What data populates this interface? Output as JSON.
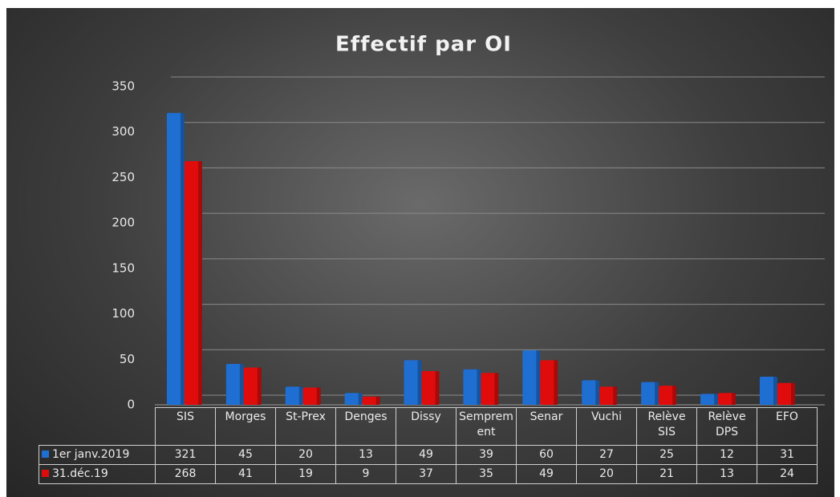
{
  "chart_data": {
    "type": "bar",
    "title": "Effectif par OI",
    "categories": [
      "SIS",
      "Morges",
      "St-Prex",
      "Denges",
      "Dissy",
      "Semprement",
      "Senar",
      "Vuchi",
      "Relève SIS",
      "Relève DPS",
      "EFO"
    ],
    "series": [
      {
        "name": "1er janv.2019",
        "color": "#1f6fd2",
        "values": [
          321,
          45,
          20,
          13,
          49,
          39,
          60,
          27,
          25,
          12,
          31
        ]
      },
      {
        "name": "31.déc.19",
        "color": "#e00c0c",
        "values": [
          268,
          41,
          19,
          9,
          37,
          35,
          49,
          20,
          21,
          13,
          24
        ]
      }
    ],
    "ylim": [
      0,
      350
    ],
    "yticks": [
      0,
      50,
      100,
      150,
      200,
      250,
      300,
      350
    ],
    "grid": true,
    "data_table": true
  }
}
